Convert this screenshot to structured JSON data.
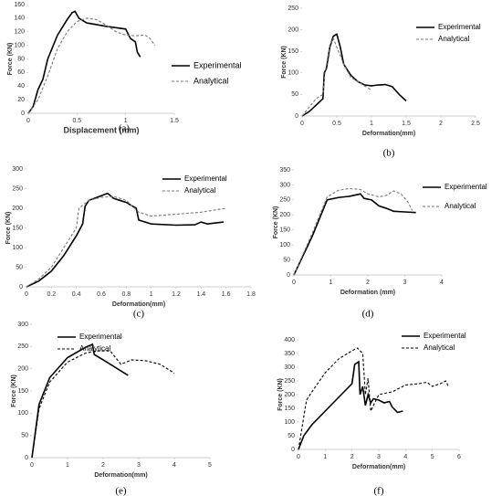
{
  "chart_data": [
    {
      "type": "line",
      "caption": "(a)",
      "xlabel": "Displacement (mm)",
      "ylabel": "Force  (KN)",
      "xlim": [
        0,
        1.5
      ],
      "xticks": [
        0,
        0.5,
        1,
        1.5
      ],
      "ylim": [
        0,
        160
      ],
      "yticks": [
        0,
        20,
        40,
        60,
        80,
        100,
        120,
        140,
        160
      ],
      "series": [
        {
          "name": "Experimental",
          "color": "#000000",
          "dashed": false,
          "x": [
            0,
            0.05,
            0.1,
            0.15,
            0.2,
            0.3,
            0.4,
            0.45,
            0.48,
            0.52,
            0.6,
            0.8,
            1.0,
            1.05,
            1.1,
            1.12,
            1.15
          ],
          "values": [
            0,
            10,
            35,
            50,
            80,
            115,
            138,
            148,
            150,
            140,
            133,
            128,
            124,
            110,
            105,
            90,
            83
          ]
        },
        {
          "name": "Analytical",
          "color": "#777777",
          "dashed": true,
          "x": [
            0,
            0.1,
            0.2,
            0.3,
            0.4,
            0.5,
            0.6,
            0.7,
            0.8,
            0.9,
            1.0,
            1.1,
            1.2,
            1.25,
            1.3
          ],
          "values": [
            0,
            20,
            55,
            95,
            120,
            135,
            140,
            138,
            130,
            120,
            115,
            114,
            115,
            110,
            100
          ]
        }
      ]
    },
    {
      "type": "line",
      "caption": "(b)",
      "xlabel": "Deformation(mm)",
      "ylabel": "Force (KN)",
      "xlim": [
        0,
        2.5
      ],
      "xticks": [
        0,
        0.5,
        1,
        1.5,
        2,
        2.5
      ],
      "ylim": [
        0,
        250
      ],
      "yticks": [
        0,
        50,
        100,
        150,
        200,
        250
      ],
      "series": [
        {
          "name": "Experimental",
          "color": "#000000",
          "dashed": false,
          "x": [
            0,
            0.1,
            0.2,
            0.3,
            0.32,
            0.35,
            0.4,
            0.45,
            0.5,
            0.55,
            0.6,
            0.7,
            0.8,
            0.9,
            1.0,
            1.1,
            1.2,
            1.3,
            1.4,
            1.5
          ],
          "values": [
            0,
            10,
            25,
            40,
            100,
            110,
            160,
            185,
            190,
            160,
            120,
            95,
            80,
            72,
            70,
            72,
            73,
            68,
            50,
            35
          ]
        },
        {
          "name": "Analytical",
          "color": "#777777",
          "dashed": true,
          "x": [
            0,
            0.1,
            0.2,
            0.3,
            0.33,
            0.4,
            0.45,
            0.5,
            0.6,
            0.7,
            0.8,
            0.9,
            1.0
          ],
          "values": [
            0,
            20,
            40,
            50,
            100,
            165,
            180,
            160,
            120,
            90,
            80,
            70,
            60
          ]
        }
      ]
    },
    {
      "type": "line",
      "caption": "(c)",
      "xlabel": "Deformation(mm)",
      "ylabel": "Force (KN)",
      "xlim": [
        0,
        1.8
      ],
      "xticks": [
        0,
        0.2,
        0.4,
        0.6,
        0.8,
        1,
        1.2,
        1.4,
        1.6,
        1.8
      ],
      "ylim": [
        0,
        300
      ],
      "yticks": [
        0,
        50,
        100,
        150,
        200,
        250,
        300
      ],
      "series": [
        {
          "name": "Experimental",
          "color": "#000000",
          "dashed": false,
          "x": [
            0,
            0.1,
            0.2,
            0.3,
            0.4,
            0.45,
            0.47,
            0.5,
            0.6,
            0.65,
            0.7,
            0.8,
            0.88,
            0.9,
            1.0,
            1.2,
            1.35,
            1.4,
            1.45,
            1.5,
            1.58
          ],
          "values": [
            0,
            15,
            40,
            80,
            130,
            160,
            205,
            220,
            232,
            238,
            225,
            215,
            200,
            170,
            160,
            157,
            158,
            165,
            160,
            162,
            165
          ]
        },
        {
          "name": "Analytical",
          "color": "#777777",
          "dashed": true,
          "x": [
            0,
            0.1,
            0.2,
            0.3,
            0.4,
            0.42,
            0.5,
            0.6,
            0.7,
            0.8,
            0.9,
            1.0,
            1.2,
            1.4,
            1.6
          ],
          "values": [
            0,
            20,
            50,
            100,
            150,
            200,
            220,
            228,
            230,
            220,
            190,
            180,
            185,
            190,
            200
          ]
        }
      ]
    },
    {
      "type": "line",
      "caption": "(d)",
      "xlabel": "Deformation (mm)",
      "ylabel": "Force (KN)",
      "xlim": [
        0,
        4
      ],
      "xticks": [
        0,
        1,
        2,
        3,
        4
      ],
      "ylim": [
        0,
        350
      ],
      "yticks": [
        0,
        50,
        100,
        150,
        200,
        250,
        300,
        350
      ],
      "series": [
        {
          "name": "Experimental",
          "color": "#000000",
          "dashed": false,
          "x": [
            0,
            0.5,
            0.9,
            1.2,
            1.5,
            1.8,
            1.9,
            2.1,
            2.3,
            2.5,
            2.7,
            3.0,
            3.3
          ],
          "values": [
            0,
            130,
            250,
            258,
            262,
            270,
            255,
            250,
            230,
            222,
            212,
            210,
            208
          ]
        },
        {
          "name": "Analytical",
          "color": "#777777",
          "dashed": true,
          "x": [
            0,
            0.5,
            0.9,
            1.2,
            1.5,
            1.8,
            2.0,
            2.3,
            2.5,
            2.7,
            2.9,
            3.1,
            3.2
          ],
          "values": [
            0,
            140,
            260,
            282,
            288,
            285,
            270,
            260,
            265,
            280,
            270,
            240,
            215
          ]
        }
      ]
    },
    {
      "type": "line",
      "caption": "(e)",
      "xlabel": "Deformation(mm)",
      "ylabel": "Force (KN)",
      "xlim": [
        0,
        5
      ],
      "xticks": [
        0,
        1,
        2,
        3,
        4,
        5
      ],
      "ylim": [
        0,
        300
      ],
      "yticks": [
        0,
        50,
        100,
        150,
        200,
        250,
        300
      ],
      "series": [
        {
          "name": "Experimental",
          "color": "#000000",
          "dashed": false,
          "x": [
            0,
            0.2,
            0.5,
            1.0,
            1.5,
            1.7,
            1.75,
            2.0,
            2.3,
            2.7
          ],
          "values": [
            0,
            120,
            180,
            225,
            248,
            255,
            232,
            220,
            205,
            185
          ]
        },
        {
          "name": "Analytical",
          "color": "#000000",
          "dashed": true,
          "x": [
            0,
            0.2,
            0.5,
            1.0,
            1.5,
            1.8,
            2.0,
            2.2,
            2.5,
            2.8,
            3.2,
            3.6,
            4.0
          ],
          "values": [
            0,
            110,
            170,
            215,
            235,
            240,
            240,
            240,
            210,
            220,
            218,
            210,
            190
          ]
        }
      ]
    },
    {
      "type": "line",
      "caption": "(f)",
      "xlabel": "Deformation(mm)",
      "ylabel": "Force (KN)",
      "xlim": [
        0,
        6
      ],
      "xticks": [
        0,
        1,
        2,
        3,
        4,
        5,
        6
      ],
      "ylim": [
        0,
        400
      ],
      "yticks": [
        0,
        50,
        100,
        150,
        200,
        250,
        300,
        350,
        400
      ],
      "series": [
        {
          "name": "Experimental",
          "color": "#000000",
          "dashed": false,
          "x": [
            0,
            0.2,
            0.5,
            1.0,
            1.5,
            2.0,
            2.1,
            2.25,
            2.3,
            2.4,
            2.5,
            2.6,
            2.7,
            2.8,
            3.0,
            3.2,
            3.4,
            3.5,
            3.7,
            3.9
          ],
          "values": [
            0,
            50,
            90,
            140,
            190,
            240,
            310,
            320,
            200,
            230,
            160,
            200,
            170,
            185,
            180,
            170,
            175,
            155,
            135,
            140
          ]
        },
        {
          "name": "Analytical",
          "color": "#000000",
          "dashed": true,
          "x": [
            0,
            0.3,
            0.5,
            1.0,
            1.5,
            2.0,
            2.2,
            2.4,
            2.5,
            2.6,
            2.7,
            3.0,
            3.5,
            4.0,
            4.5,
            4.8,
            5.0,
            5.3,
            5.5,
            5.6
          ],
          "values": [
            0,
            180,
            210,
            280,
            330,
            360,
            370,
            350,
            200,
            260,
            140,
            200,
            210,
            235,
            240,
            245,
            230,
            240,
            250,
            230
          ]
        }
      ]
    }
  ]
}
